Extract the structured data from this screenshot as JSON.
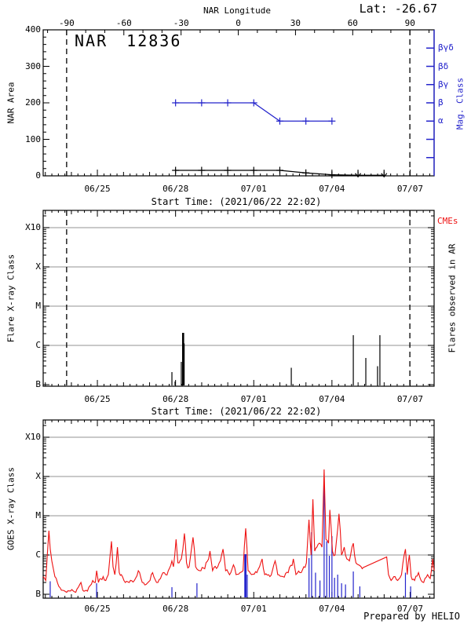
{
  "colors": {
    "blue": "#2424cc",
    "red": "#ee1111",
    "gray": "#a9a9a9",
    "black": "#000000"
  },
  "header": {
    "top_axis_title": "NAR Longitude",
    "lat_label": "Lat: -26.67"
  },
  "panel1": {
    "title": "NAR 12836",
    "ylabel": "NAR Area",
    "right_label": "Mag. Class",
    "xtitle": "Start Time: (2021/06/22 22:02)",
    "y_ticks": [
      "0",
      "100",
      "200",
      "300",
      "400"
    ],
    "lon_tick_labels": [
      "-90",
      "-60",
      "-30",
      "0",
      "30",
      "60",
      "90"
    ],
    "mag_class_labels": [
      "βγδ",
      "βδ",
      "βγ",
      "β",
      "α"
    ]
  },
  "panel2": {
    "ylabel": "Flare X-ray Class",
    "right_label": "Flares observed in AR",
    "cme_label": "CMEs",
    "xtitle": "Start Time: (2021/06/22 22:02)",
    "y_labels": [
      "X10",
      "X",
      "M",
      "C",
      "B"
    ]
  },
  "panel3": {
    "ylabel": "GOES X-ray Class",
    "credit": "Prepared by HELIO",
    "y_labels": [
      "X10",
      "X",
      "M",
      "C",
      "B"
    ]
  },
  "x_axis": {
    "day_min": 0,
    "day_max": 15,
    "date_labels": [
      {
        "label": "06/25",
        "day": 2.08
      },
      {
        "label": "06/28",
        "day": 5.08
      },
      {
        "label": "07/01",
        "day": 8.08
      },
      {
        "label": "07/04",
        "day": 11.08
      },
      {
        "label": "07/07",
        "day": 14.08
      }
    ],
    "limb_days": [
      0.9,
      14.07
    ]
  },
  "chart_data": [
    {
      "type": "line",
      "title": "NAR 12836",
      "ylabel": "NAR Area",
      "ylim": [
        0,
        400
      ],
      "y_major_step": 100,
      "y_minor_step": 20,
      "top_axis": {
        "label": "NAR Longitude",
        "ticks_deg": [
          -90,
          -60,
          -30,
          0,
          30,
          60,
          90
        ],
        "minor_step_deg": 10,
        "lon_at_day0": -102.3,
        "lon_per_day": 13.665
      },
      "right_axis": {
        "label": "Mag. Class",
        "tick_areas": [
          50,
          100,
          150,
          200,
          250,
          300,
          350
        ],
        "class_labels": [
          {
            "label": "βγδ",
            "area": 350
          },
          {
            "label": "βδ",
            "area": 300
          },
          {
            "label": "βγ",
            "area": 250
          },
          {
            "label": "β",
            "area": 200
          },
          {
            "label": "α",
            "area": 150
          }
        ]
      },
      "series": [
        {
          "name": "nar_area",
          "color": "#000000",
          "marker": "plus",
          "points": [
            [
              5.08,
              15
            ],
            [
              6.08,
              15
            ],
            [
              7.08,
              15
            ],
            [
              8.08,
              15
            ],
            [
              9.08,
              15
            ],
            [
              10.08,
              8
            ],
            [
              11.08,
              3
            ],
            [
              12.08,
              1.5
            ],
            [
              13.08,
              1.5
            ]
          ],
          "marker_count": 7,
          "limit_arrows": [
            [
              12.08,
              1.5
            ],
            [
              13.08,
              1.5
            ]
          ]
        },
        {
          "name": "mag_class",
          "color": "#2424cc",
          "marker": "plus",
          "points": [
            [
              5.08,
              200
            ],
            [
              6.08,
              200
            ],
            [
              7.08,
              200
            ],
            [
              8.08,
              200
            ],
            [
              9.08,
              150
            ],
            [
              10.08,
              150
            ],
            [
              11.08,
              150
            ]
          ],
          "marker_count": 7,
          "class_values": [
            "β",
            "β",
            "β",
            "β",
            "α",
            "α",
            "α"
          ]
        }
      ]
    },
    {
      "type": "bar",
      "ylabel": "Flare X-ray Class",
      "y_decades": [
        "B",
        "C",
        "M",
        "X",
        "X10"
      ],
      "gridlines": [
        "C",
        "M",
        "X",
        "X10"
      ],
      "bars_note": "day, decades above B1, optional width px",
      "bars": [
        [
          4.94,
          0.32
        ],
        [
          5.06,
          0.08
        ],
        [
          5.3,
          0.58
        ],
        [
          5.37,
          1.32,
          2.6
        ],
        [
          5.41,
          1.05
        ],
        [
          9.52,
          0.43
        ],
        [
          11.9,
          1.26
        ],
        [
          12.38,
          0.68
        ],
        [
          12.83,
          0.47
        ],
        [
          12.92,
          1.26
        ]
      ]
    },
    {
      "type": "line",
      "ylabel": "GOES X-ray Class",
      "y_decades": [
        "B",
        "C",
        "M",
        "X",
        "X10"
      ],
      "gridlines": [
        "C",
        "M",
        "X",
        "X10"
      ],
      "noise_amplitude": 0.09,
      "gap_threshold_days": 0.6,
      "flux_points": [
        [
          0.0,
          0.45
        ],
        [
          0.1,
          0.35
        ],
        [
          0.22,
          1.62
        ],
        [
          0.27,
          1.15
        ],
        [
          0.33,
          0.85
        ],
        [
          0.45,
          0.45
        ],
        [
          0.6,
          0.2
        ],
        [
          0.75,
          0.1
        ],
        [
          0.9,
          0.05
        ],
        [
          1.1,
          0.12
        ],
        [
          1.25,
          0.05
        ],
        [
          1.45,
          0.3
        ],
        [
          1.52,
          0.1
        ],
        [
          1.7,
          0.08
        ],
        [
          1.9,
          0.35
        ],
        [
          2.0,
          0.3
        ],
        [
          2.05,
          0.6
        ],
        [
          2.12,
          0.3
        ],
        [
          2.3,
          0.45
        ],
        [
          2.4,
          0.35
        ],
        [
          2.5,
          0.5
        ],
        [
          2.62,
          1.35
        ],
        [
          2.68,
          0.7
        ],
        [
          2.75,
          0.5
        ],
        [
          2.85,
          1.2
        ],
        [
          2.92,
          0.55
        ],
        [
          3.0,
          0.5
        ],
        [
          3.1,
          0.35
        ],
        [
          3.3,
          0.3
        ],
        [
          3.5,
          0.35
        ],
        [
          3.65,
          0.6
        ],
        [
          3.8,
          0.3
        ],
        [
          3.95,
          0.25
        ],
        [
          4.1,
          0.35
        ],
        [
          4.2,
          0.55
        ],
        [
          4.35,
          0.3
        ],
        [
          4.5,
          0.4
        ],
        [
          4.6,
          0.55
        ],
        [
          4.7,
          0.5
        ],
        [
          4.8,
          0.6
        ],
        [
          4.94,
          0.85
        ],
        [
          5.0,
          0.7
        ],
        [
          5.1,
          1.4
        ],
        [
          5.17,
          0.8
        ],
        [
          5.3,
          0.9
        ],
        [
          5.42,
          1.55
        ],
        [
          5.5,
          0.8
        ],
        [
          5.6,
          0.7
        ],
        [
          5.75,
          1.45
        ],
        [
          5.85,
          0.7
        ],
        [
          6.0,
          0.6
        ],
        [
          6.2,
          0.65
        ],
        [
          6.4,
          1.1
        ],
        [
          6.5,
          0.6
        ],
        [
          6.7,
          0.7
        ],
        [
          6.9,
          1.15
        ],
        [
          7.0,
          0.6
        ],
        [
          7.2,
          0.55
        ],
        [
          7.3,
          0.75
        ],
        [
          7.4,
          0.5
        ],
        [
          7.55,
          0.55
        ],
        [
          7.67,
          0.6
        ],
        [
          7.77,
          1.68
        ],
        [
          7.86,
          0.6
        ],
        [
          8.0,
          0.5
        ],
        [
          8.2,
          0.55
        ],
        [
          8.4,
          0.9
        ],
        [
          8.5,
          0.5
        ],
        [
          8.7,
          0.45
        ],
        [
          8.9,
          0.85
        ],
        [
          9.0,
          0.5
        ],
        [
          9.2,
          0.45
        ],
        [
          9.4,
          0.55
        ],
        [
          9.6,
          0.9
        ],
        [
          9.7,
          0.5
        ],
        [
          9.9,
          0.55
        ],
        [
          10.0,
          0.7
        ],
        [
          10.1,
          0.8
        ],
        [
          10.2,
          1.9
        ],
        [
          10.28,
          1.0
        ],
        [
          10.35,
          2.42
        ],
        [
          10.42,
          1.1
        ],
        [
          10.5,
          1.2
        ],
        [
          10.6,
          1.3
        ],
        [
          10.7,
          1.2
        ],
        [
          10.78,
          3.18
        ],
        [
          10.85,
          1.4
        ],
        [
          10.95,
          1.3
        ],
        [
          11.0,
          2.15
        ],
        [
          11.1,
          1.1
        ],
        [
          11.2,
          1.0
        ],
        [
          11.35,
          2.05
        ],
        [
          11.45,
          1.0
        ],
        [
          11.55,
          1.2
        ],
        [
          11.65,
          0.9
        ],
        [
          11.75,
          0.85
        ],
        [
          11.9,
          1.3
        ],
        [
          12.0,
          0.8
        ],
        [
          12.1,
          0.75
        ],
        [
          12.2,
          0.7
        ],
        [
          12.28,
          0.68
        ],
        [
          13.18,
          0.95
        ],
        [
          13.25,
          0.5
        ],
        [
          13.35,
          0.35
        ],
        [
          13.5,
          0.45
        ],
        [
          13.6,
          0.35
        ],
        [
          13.75,
          0.5
        ],
        [
          13.9,
          1.15
        ],
        [
          13.97,
          0.5
        ],
        [
          14.05,
          1.0
        ],
        [
          14.12,
          0.45
        ],
        [
          14.25,
          0.35
        ],
        [
          14.4,
          0.55
        ],
        [
          14.5,
          0.35
        ],
        [
          14.6,
          0.3
        ],
        [
          14.75,
          0.5
        ],
        [
          14.85,
          0.4
        ],
        [
          14.95,
          0.9
        ],
        [
          15.0,
          0.6
        ]
      ],
      "event_bars": [
        [
          0.27,
          0.33
        ],
        [
          2.05,
          0.28
        ],
        [
          4.94,
          0.18
        ],
        [
          5.9,
          0.28
        ],
        [
          7.76,
          1.02,
          2.8
        ],
        [
          7.83,
          0.5
        ],
        [
          10.2,
          0.92
        ],
        [
          10.3,
          1.58
        ],
        [
          10.45,
          0.55
        ],
        [
          10.62,
          0.35
        ],
        [
          10.78,
          2.82
        ],
        [
          10.88,
          1.35
        ],
        [
          10.98,
          0.98
        ],
        [
          11.08,
          1.48
        ],
        [
          11.18,
          0.42
        ],
        [
          11.3,
          0.5
        ],
        [
          11.45,
          0.28
        ],
        [
          11.6,
          0.25
        ],
        [
          11.9,
          0.58
        ],
        [
          12.15,
          0.2
        ],
        [
          13.9,
          0.55
        ],
        [
          14.1,
          0.2
        ]
      ]
    }
  ]
}
